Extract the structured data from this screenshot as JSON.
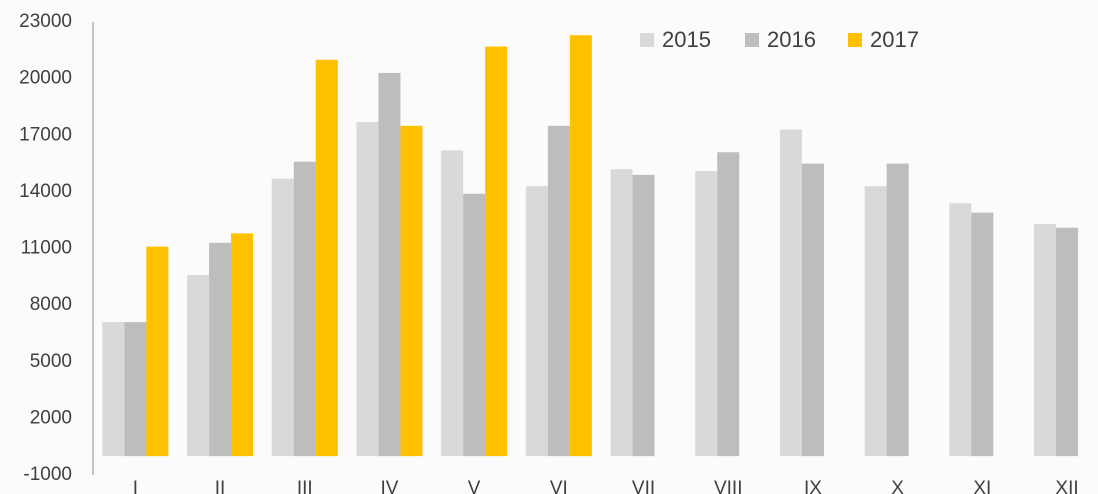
{
  "chart_data": {
    "type": "bar",
    "categories": [
      "I",
      "II",
      "III",
      "IV",
      "V",
      "VI",
      "VII",
      "VIII",
      "IX",
      "X",
      "XI",
      "XII"
    ],
    "series": [
      {
        "name": "2015",
        "color": "#d9d9d9",
        "values": [
          7100,
          9600,
          14700,
          17700,
          16200,
          14300,
          15200,
          15100,
          17300,
          14300,
          13400,
          12300
        ]
      },
      {
        "name": "2016",
        "color": "#bdbdbd",
        "values": [
          7100,
          11300,
          15600,
          20300,
          13900,
          17500,
          14900,
          16100,
          15500,
          15500,
          12900,
          12100
        ]
      },
      {
        "name": "2017",
        "color": "#ffc000",
        "values": [
          11100,
          11800,
          21000,
          17500,
          21700,
          22300,
          null,
          null,
          null,
          null,
          null,
          null
        ]
      }
    ],
    "ylim": [
      -1000,
      23000
    ],
    "yticks": [
      -1000,
      2000,
      5000,
      8000,
      11000,
      14000,
      17000,
      20000,
      23000
    ],
    "grid": false,
    "legend": "top-right"
  }
}
